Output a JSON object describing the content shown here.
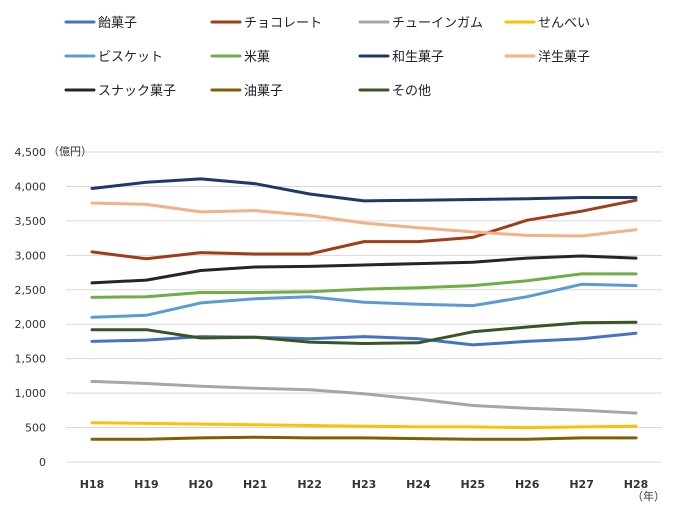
{
  "chart_data": {
    "type": "line",
    "title": "",
    "ylabel": "（億円）",
    "xlabel": "（年）",
    "ylim": [
      0,
      4500
    ],
    "yticks": [
      "0",
      "500",
      "1,000",
      "1,500",
      "2,000",
      "2,500",
      "3,000",
      "3,500",
      "4,000",
      "4,500"
    ],
    "ytick_values": [
      0,
      500,
      1000,
      1500,
      2000,
      2500,
      3000,
      3500,
      4000,
      4500
    ],
    "categories": [
      "H18",
      "H19",
      "H20",
      "H21",
      "H22",
      "H23",
      "H24",
      "H25",
      "H26",
      "H27",
      "H28"
    ],
    "grid": true,
    "legend_position": "top",
    "series": [
      {
        "name": "飴菓子",
        "color": "#4472c4",
        "values": [
          1750,
          1770,
          1820,
          1810,
          1790,
          1820,
          1790,
          1700,
          1750,
          1790,
          1870
        ]
      },
      {
        "name": "チョコレート",
        "color": "#9e3d17",
        "values": [
          3050,
          2950,
          3040,
          3020,
          3020,
          3200,
          3200,
          3260,
          3510,
          3640,
          3800
        ]
      },
      {
        "name": "チューインガム",
        "color": "#a6a6a6",
        "values": [
          1170,
          1140,
          1100,
          1070,
          1050,
          990,
          910,
          820,
          780,
          750,
          710
        ]
      },
      {
        "name": "せんべい",
        "color": "#ffc000",
        "values": [
          570,
          560,
          550,
          540,
          530,
          520,
          510,
          510,
          500,
          510,
          520
        ]
      },
      {
        "name": "ビスケット",
        "color": "#5b9bd5",
        "values": [
          2100,
          2130,
          2310,
          2370,
          2400,
          2320,
          2290,
          2270,
          2400,
          2580,
          2560
        ]
      },
      {
        "name": "米菓",
        "color": "#70ad47",
        "values": [
          2390,
          2400,
          2460,
          2460,
          2470,
          2510,
          2530,
          2560,
          2630,
          2730,
          2730
        ]
      },
      {
        "name": "和生菓子",
        "color": "#203864",
        "values": [
          3970,
          4060,
          4110,
          4040,
          3890,
          3790,
          3800,
          3810,
          3820,
          3840,
          3840
        ]
      },
      {
        "name": "洋生菓子",
        "color": "#f4b183",
        "values": [
          3760,
          3740,
          3630,
          3650,
          3580,
          3470,
          3400,
          3340,
          3290,
          3280,
          3370
        ]
      },
      {
        "name": "スナック菓子",
        "color": "#262626",
        "values": [
          2600,
          2640,
          2780,
          2830,
          2840,
          2860,
          2880,
          2900,
          2960,
          2990,
          2960
        ]
      },
      {
        "name": "油菓子",
        "color": "#806000",
        "values": [
          330,
          330,
          350,
          360,
          350,
          350,
          340,
          330,
          330,
          350,
          350
        ]
      },
      {
        "name": "その他",
        "color": "#375623",
        "values": [
          1920,
          1920,
          1800,
          1810,
          1740,
          1720,
          1730,
          1890,
          1960,
          2020,
          2030
        ]
      }
    ]
  }
}
